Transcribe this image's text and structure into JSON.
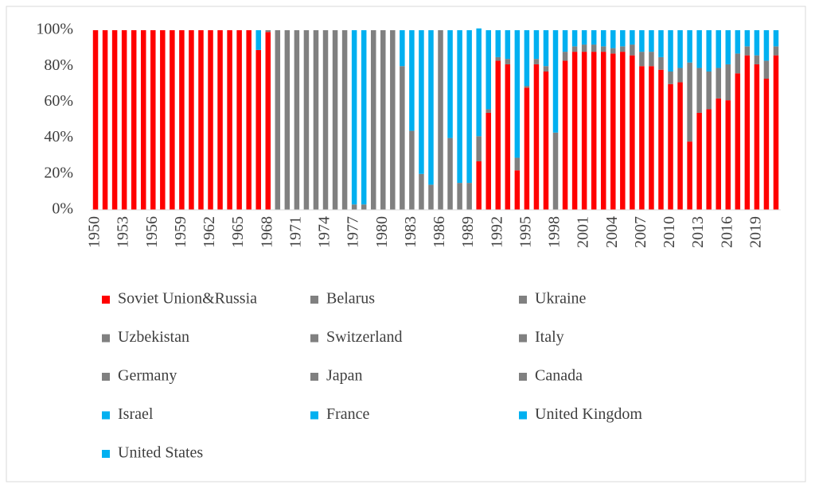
{
  "chart_data": {
    "type": "stacked_bar",
    "categories": [
      "1950",
      null,
      null,
      "1953",
      null,
      null,
      "1956",
      null,
      null,
      "1959",
      null,
      null,
      "1962",
      null,
      null,
      "1965",
      null,
      null,
      "1968",
      null,
      null,
      "1971",
      null,
      null,
      "1974",
      null,
      null,
      "1977",
      null,
      null,
      "1980",
      null,
      null,
      "1983",
      null,
      null,
      "1986",
      null,
      null,
      "1989",
      null,
      null,
      "1992",
      null,
      null,
      "1995",
      null,
      null,
      "1998",
      null,
      null,
      "2001",
      null,
      null,
      "2004",
      null,
      null,
      "2007",
      null,
      null,
      "2010",
      null,
      null,
      "2013",
      null,
      null,
      "2016",
      null,
      null,
      "2019",
      null,
      null
    ],
    "ylim": [
      0,
      100
    ],
    "yticks": [
      {
        "value": 0,
        "label": "0%"
      },
      {
        "value": 20,
        "label": "20%"
      },
      {
        "value": 40,
        "label": "40%"
      },
      {
        "value": 60,
        "label": "60%"
      },
      {
        "value": 80,
        "label": "80%"
      },
      {
        "value": 100,
        "label": "100%"
      }
    ],
    "grid": false,
    "legend": "bottom",
    "series": [
      {
        "name": "Soviet Union&Russia",
        "color": "#ff0000",
        "values": [
          100,
          100,
          100,
          100,
          100,
          100,
          100,
          100,
          100,
          100,
          100,
          100,
          100,
          100,
          100,
          100,
          100,
          89,
          99,
          0,
          0,
          0,
          0,
          0,
          0,
          0,
          0,
          0,
          0,
          0,
          0,
          0,
          0,
          0,
          0,
          0,
          0,
          0,
          0,
          0,
          27,
          54,
          83,
          81,
          22,
          68,
          81,
          77,
          0,
          83,
          88,
          88,
          88,
          88,
          87,
          88,
          86,
          80,
          80,
          78,
          70,
          71,
          38,
          54,
          56,
          62,
          61,
          76,
          86,
          81,
          73,
          86
        ]
      },
      {
        "name": "Belarus",
        "color": "#808080",
        "values": [
          0,
          0,
          0,
          0,
          0,
          0,
          0,
          0,
          0,
          0,
          0,
          0,
          0,
          0,
          0,
          0,
          0,
          0,
          0,
          0,
          0,
          0,
          0,
          0,
          0,
          0,
          0,
          0,
          0,
          0,
          0,
          0,
          0,
          0,
          0,
          0,
          0,
          0,
          0,
          0,
          0,
          0,
          0,
          0,
          0,
          0,
          0,
          0,
          0,
          0,
          0,
          0,
          0,
          0,
          0,
          0,
          0,
          0,
          0,
          0,
          0,
          0,
          0,
          0,
          0,
          0,
          0,
          0,
          0,
          0,
          0,
          0
        ]
      },
      {
        "name": "Ukraine",
        "color": "#808080",
        "values": [
          0,
          0,
          0,
          0,
          0,
          0,
          0,
          0,
          0,
          0,
          0,
          0,
          0,
          0,
          0,
          0,
          0,
          0,
          1,
          100,
          100,
          100,
          100,
          100,
          100,
          100,
          100,
          3,
          3,
          100,
          100,
          100,
          80,
          44,
          20,
          14,
          100,
          40,
          15,
          15,
          14,
          2,
          2,
          3,
          7,
          1,
          3,
          3,
          43,
          5,
          3,
          4,
          4,
          3,
          3,
          3,
          6,
          8,
          8,
          7,
          7,
          8,
          44,
          25,
          21,
          17,
          20,
          11,
          5,
          5,
          10,
          5
        ]
      },
      {
        "name": "Uzbekistan",
        "color": "#808080",
        "values": [
          0,
          0,
          0,
          0,
          0,
          0,
          0,
          0,
          0,
          0,
          0,
          0,
          0,
          0,
          0,
          0,
          0,
          0,
          0,
          0,
          0,
          0,
          0,
          0,
          0,
          0,
          0,
          0,
          0,
          0,
          0,
          0,
          0,
          0,
          0,
          0,
          0,
          0,
          0,
          0,
          0,
          0,
          0,
          0,
          0,
          0,
          0,
          0,
          0,
          0,
          0,
          0,
          0,
          0,
          0,
          0,
          0,
          0,
          0,
          0,
          0,
          0,
          0,
          0,
          0,
          0,
          0,
          0,
          0,
          0,
          0,
          0
        ]
      },
      {
        "name": "Switzerland",
        "color": "#808080",
        "values": [
          0,
          0,
          0,
          0,
          0,
          0,
          0,
          0,
          0,
          0,
          0,
          0,
          0,
          0,
          0,
          0,
          0,
          0,
          0,
          0,
          0,
          0,
          0,
          0,
          0,
          0,
          0,
          0,
          0,
          0,
          0,
          0,
          0,
          0,
          0,
          0,
          0,
          0,
          0,
          0,
          0,
          0,
          0,
          0,
          0,
          0,
          0,
          0,
          0,
          0,
          0,
          0,
          0,
          0,
          0,
          0,
          0,
          0,
          0,
          0,
          0,
          0,
          0,
          0,
          0,
          0,
          0,
          0,
          0,
          0,
          0,
          0
        ]
      },
      {
        "name": "Italy",
        "color": "#808080",
        "values": [
          0,
          0,
          0,
          0,
          0,
          0,
          0,
          0,
          0,
          0,
          0,
          0,
          0,
          0,
          0,
          0,
          0,
          0,
          0,
          0,
          0,
          0,
          0,
          0,
          0,
          0,
          0,
          0,
          0,
          0,
          0,
          0,
          0,
          0,
          0,
          0,
          0,
          0,
          0,
          0,
          0,
          0,
          0,
          0,
          0,
          0,
          0,
          0,
          0,
          0,
          0,
          0,
          0,
          0,
          0,
          0,
          0,
          0,
          0,
          0,
          0,
          0,
          0,
          0,
          0,
          0,
          0,
          0,
          0,
          0,
          0,
          0
        ]
      },
      {
        "name": "Germany",
        "color": "#808080",
        "values": [
          0,
          0,
          0,
          0,
          0,
          0,
          0,
          0,
          0,
          0,
          0,
          0,
          0,
          0,
          0,
          0,
          0,
          0,
          0,
          0,
          0,
          0,
          0,
          0,
          0,
          0,
          0,
          0,
          0,
          0,
          0,
          0,
          0,
          0,
          0,
          0,
          0,
          0,
          0,
          0,
          0,
          0,
          0,
          0,
          0,
          0,
          0,
          0,
          0,
          0,
          0,
          0,
          0,
          0,
          0,
          0,
          0,
          0,
          0,
          0,
          0,
          0,
          0,
          0,
          0,
          0,
          0,
          0,
          0,
          0,
          0,
          0
        ]
      },
      {
        "name": "Japan",
        "color": "#808080",
        "values": [
          0,
          0,
          0,
          0,
          0,
          0,
          0,
          0,
          0,
          0,
          0,
          0,
          0,
          0,
          0,
          0,
          0,
          0,
          0,
          0,
          0,
          0,
          0,
          0,
          0,
          0,
          0,
          0,
          0,
          0,
          0,
          0,
          0,
          0,
          0,
          0,
          0,
          0,
          0,
          0,
          0,
          0,
          0,
          0,
          0,
          0,
          0,
          0,
          0,
          0,
          0,
          0,
          0,
          0,
          0,
          0,
          0,
          0,
          0,
          0,
          0,
          0,
          0,
          0,
          0,
          0,
          0,
          0,
          0,
          0,
          0,
          0
        ]
      },
      {
        "name": "Canada",
        "color": "#808080",
        "values": [
          0,
          0,
          0,
          0,
          0,
          0,
          0,
          0,
          0,
          0,
          0,
          0,
          0,
          0,
          0,
          0,
          0,
          0,
          0,
          0,
          0,
          0,
          0,
          0,
          0,
          0,
          0,
          0,
          0,
          0,
          0,
          0,
          0,
          0,
          0,
          0,
          0,
          0,
          0,
          0,
          0,
          0,
          0,
          0,
          0,
          0,
          0,
          0,
          0,
          0,
          0,
          0,
          0,
          0,
          0,
          0,
          0,
          0,
          0,
          0,
          0,
          0,
          0,
          0,
          0,
          0,
          0,
          0,
          0,
          0,
          0,
          0
        ]
      },
      {
        "name": "Israel",
        "color": "#00b0f0",
        "values": [
          0,
          0,
          0,
          0,
          0,
          0,
          0,
          0,
          0,
          0,
          0,
          0,
          0,
          0,
          0,
          0,
          0,
          0,
          0,
          0,
          0,
          0,
          0,
          0,
          0,
          0,
          0,
          0,
          0,
          0,
          0,
          0,
          0,
          0,
          0,
          0,
          0,
          0,
          0,
          0,
          0,
          0,
          0,
          0,
          0,
          0,
          0,
          0,
          0,
          0,
          0,
          0,
          0,
          0,
          0,
          0,
          0,
          0,
          0,
          0,
          0,
          0,
          0,
          0,
          0,
          0,
          0,
          0,
          0,
          0,
          0,
          0
        ]
      },
      {
        "name": "France",
        "color": "#00b0f0",
        "values": [
          0,
          0,
          0,
          0,
          0,
          0,
          0,
          0,
          0,
          0,
          0,
          0,
          0,
          0,
          0,
          0,
          0,
          0,
          0,
          0,
          0,
          0,
          0,
          0,
          0,
          0,
          0,
          0,
          0,
          0,
          0,
          0,
          0,
          0,
          0,
          0,
          0,
          0,
          0,
          0,
          0,
          0,
          0,
          0,
          0,
          0,
          0,
          0,
          0,
          0,
          0,
          0,
          0,
          0,
          0,
          0,
          0,
          0,
          0,
          0,
          0,
          0,
          0,
          0,
          0,
          0,
          0,
          0,
          0,
          0,
          0,
          0
        ]
      },
      {
        "name": "United Kingdom",
        "color": "#00b0f0",
        "values": [
          0,
          0,
          0,
          0,
          0,
          0,
          0,
          0,
          0,
          0,
          0,
          0,
          0,
          0,
          0,
          0,
          0,
          0,
          0,
          0,
          0,
          0,
          0,
          0,
          0,
          0,
          0,
          0,
          0,
          0,
          0,
          0,
          0,
          0,
          0,
          0,
          0,
          0,
          0,
          0,
          0,
          0,
          0,
          0,
          0,
          0,
          0,
          0,
          0,
          0,
          0,
          0,
          0,
          0,
          0,
          0,
          0,
          0,
          0,
          0,
          0,
          0,
          0,
          0,
          0,
          0,
          0,
          0,
          0,
          0,
          0,
          0
        ]
      },
      {
        "name": "United States",
        "color": "#00b0f0",
        "values": [
          0,
          0,
          0,
          0,
          0,
          0,
          0,
          0,
          0,
          0,
          0,
          0,
          0,
          0,
          0,
          0,
          0,
          11,
          0,
          0,
          0,
          0,
          0,
          0,
          0,
          0,
          0,
          97,
          97,
          0,
          0,
          0,
          20,
          56,
          80,
          86,
          0,
          60,
          85,
          85,
          60,
          44,
          15,
          16,
          71,
          31,
          16,
          20,
          57,
          12,
          9,
          8,
          8,
          9,
          10,
          9,
          8,
          12,
          12,
          15,
          23,
          21,
          18,
          21,
          23,
          21,
          19,
          13,
          9,
          14,
          17,
          9
        ]
      }
    ]
  }
}
